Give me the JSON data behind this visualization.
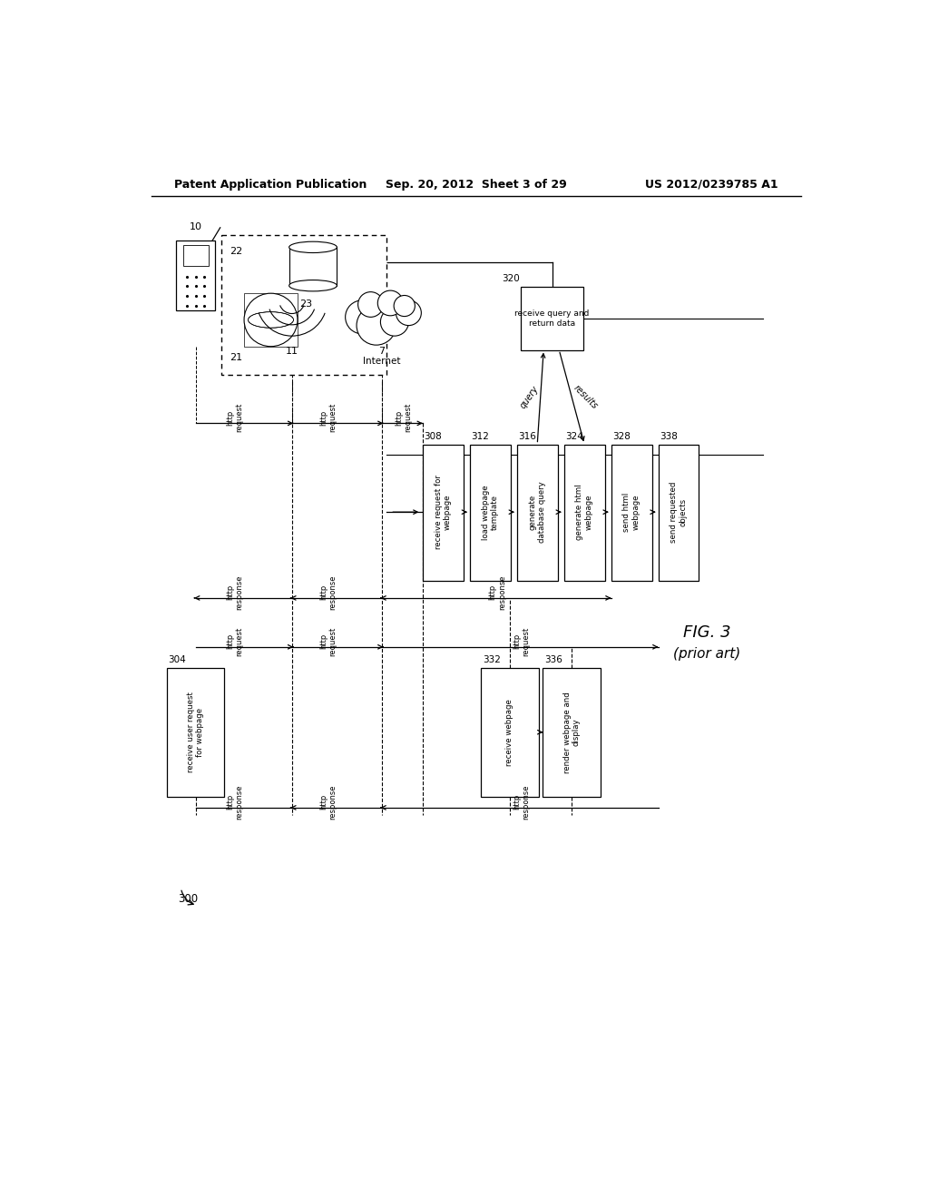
{
  "header_left": "Patent Application Publication",
  "header_mid": "Sep. 20, 2012  Sheet 3 of 29",
  "header_right": "US 2012/0239785 A1",
  "fig_label": "FIG. 3",
  "fig_sublabel": "(prior art)",
  "figure_number": "300",
  "bg_color": "#ffffff",
  "server_boxes": [
    {
      "id": "308",
      "label": "receive request for\nwebpage"
    },
    {
      "id": "312",
      "label": "load webpage\ntemplate"
    },
    {
      "id": "316",
      "label": "generate\ndatabase query"
    },
    {
      "id": "324",
      "label": "generate html\nwebpage"
    },
    {
      "id": "328",
      "label": "send html\nwebpage"
    },
    {
      "id": "338",
      "label": "send requested\nobjects"
    }
  ],
  "client_boxes": [
    {
      "id": "304",
      "label": "receive user request\nfor webpage"
    },
    {
      "id": "332",
      "label": "receive webpage"
    },
    {
      "id": "336",
      "label": "render webpage and\ndisplay"
    }
  ],
  "db_box": {
    "id": "320",
    "label": "receive query and\nreturn data"
  }
}
